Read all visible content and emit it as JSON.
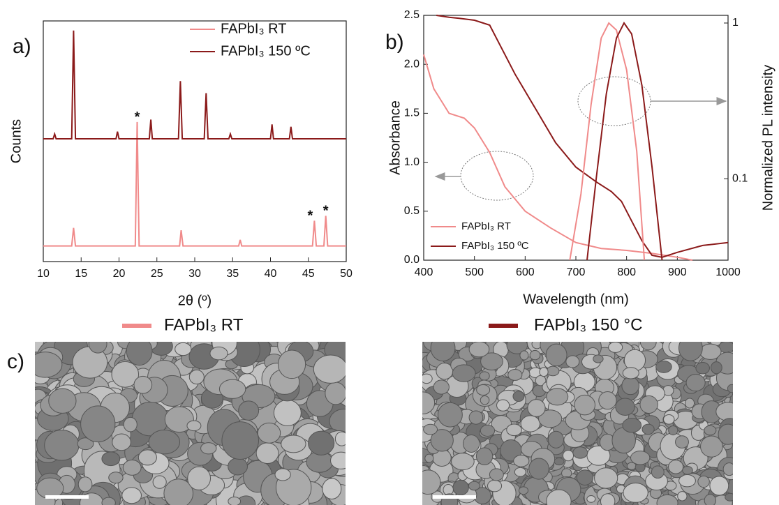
{
  "chart_data": [
    {
      "type": "line",
      "panel_label": "a)",
      "xlabel": "2θ (º)",
      "ylabel": "Counts",
      "xlim": [
        10,
        50
      ],
      "xticks": [
        10,
        15,
        20,
        25,
        30,
        35,
        40,
        45,
        50
      ],
      "ylim": [
        0,
        100
      ],
      "legend": "upper right",
      "series": [
        {
          "name": "FAPbI₃ RT",
          "color": "#f08a8a",
          "x": [
            10,
            13.75,
            14,
            14.25,
            22.15,
            22.4,
            22.65,
            28,
            28.2,
            28.45,
            35.8,
            36,
            36.2,
            45.55,
            45.8,
            46.05,
            47.05,
            47.3,
            47.55,
            50
          ],
          "values": [
            6.5,
            6.5,
            14,
            6.5,
            6.5,
            58,
            6.5,
            6.5,
            13,
            6.5,
            6.5,
            9,
            6.5,
            6.5,
            17,
            6.5,
            6.5,
            19,
            6.5,
            6.5
          ]
        },
        {
          "name": "FAPbI₃ 150 ºC",
          "color": "#8b1a1a",
          "x": [
            10,
            11.3,
            11.5,
            11.7,
            13.75,
            14,
            14.25,
            19.6,
            19.8,
            20,
            24,
            24.2,
            24.4,
            27.85,
            28.1,
            28.35,
            31.25,
            31.5,
            31.75,
            34.5,
            34.7,
            34.9,
            40,
            40.2,
            40.4,
            42.5,
            42.7,
            42.9,
            50
          ],
          "values": [
            51,
            51,
            53,
            51,
            51,
            96,
            51,
            51,
            54,
            51,
            51,
            59,
            51,
            51,
            75,
            51,
            51,
            70,
            51,
            51,
            53,
            51,
            51,
            57,
            51,
            51,
            56,
            51,
            51
          ]
        }
      ],
      "annotations": [
        {
          "text": "*",
          "x": 22.4
        },
        {
          "text": "*",
          "x": 45.8
        },
        {
          "text": "*",
          "x": 47.3
        }
      ]
    },
    {
      "type": "line",
      "panel_label": "b)",
      "xlabel": "Wavelength (nm)",
      "ylabel": "Absorbance",
      "y2label": "Normalized PL intensity",
      "xlim": [
        400,
        1000
      ],
      "xticks": [
        400,
        500,
        600,
        700,
        800,
        900,
        1000
      ],
      "ylim": [
        0,
        2.5
      ],
      "yticks": [
        {
          "value": 0,
          "label": "0.0"
        },
        0.5,
        {
          "value": 1,
          "label": "1.0"
        },
        1.5,
        {
          "value": 2,
          "label": "2.0"
        },
        2.5
      ],
      "y2lim": [
        0.03,
        1.12
      ],
      "y2ticks": [
        0.1,
        1
      ],
      "y2scale": "log",
      "legend": "lower left",
      "series": [
        {
          "name": "FAPbI₃ RT",
          "color": "#f08a8a",
          "x": [
            400,
            420,
            450,
            480,
            500,
            530,
            560,
            600,
            650,
            700,
            750,
            800,
            850,
            900,
            930
          ],
          "values": [
            2.1,
            1.75,
            1.5,
            1.45,
            1.35,
            1.1,
            0.75,
            0.5,
            0.33,
            0.18,
            0.12,
            0.1,
            0.07,
            0.03,
            0
          ]
        },
        {
          "name": "FAPbI₃ 150 ºC",
          "color": "#8b1a1a",
          "x": [
            425,
            450,
            470,
            500,
            530,
            550,
            580,
            620,
            660,
            700,
            740,
            770,
            790,
            810,
            830,
            850,
            870,
            900,
            950,
            1000
          ],
          "values": [
            2.5,
            2.48,
            2.47,
            2.45,
            2.4,
            2.2,
            1.9,
            1.55,
            1.2,
            0.95,
            0.8,
            0.7,
            0.6,
            0.4,
            0.2,
            0.05,
            0.03,
            0.08,
            0.15,
            0.18
          ]
        },
        {
          "color": "#f08a8a",
          "axis": "y2",
          "x": [
            688,
            710,
            730,
            750,
            765,
            780,
            800,
            820,
            835
          ],
          "values": [
            0.03,
            0.08,
            0.3,
            0.8,
            1,
            0.9,
            0.5,
            0.15,
            0.03
          ]
        },
        {
          "color": "#8b1a1a",
          "axis": "y2",
          "x": [
            722,
            740,
            760,
            780,
            795,
            810,
            830,
            850,
            870
          ],
          "values": [
            0.03,
            0.1,
            0.35,
            0.8,
            1,
            0.85,
            0.4,
            0.12,
            0.03
          ]
        }
      ]
    }
  ],
  "sem": {
    "panel_label": "c)",
    "items": [
      {
        "label": "FAPbI₃ RT",
        "color": "#f08a8a"
      },
      {
        "label": "FAPbI₃ 150 °C",
        "color": "#8b1a1a"
      }
    ]
  }
}
